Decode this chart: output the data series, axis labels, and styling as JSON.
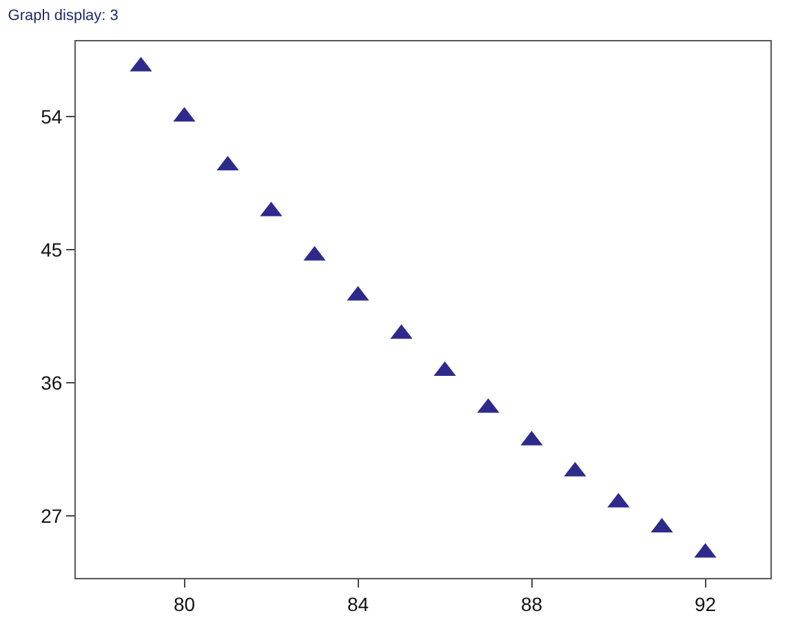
{
  "chart_data": {
    "type": "scatter",
    "title": "Graph display: 3",
    "x": [
      79,
      80,
      81,
      82,
      83,
      84,
      85,
      86,
      87,
      88,
      89,
      90,
      91,
      92
    ],
    "series": [
      {
        "color": "#2e2a8c",
        "values": [
          57.4,
          54.0,
          50.7,
          47.6,
          44.6,
          41.9,
          39.3,
          36.8,
          34.3,
          32.1,
          30.0,
          27.9,
          26.2,
          24.5
        ]
      }
    ],
    "marker": "triangle",
    "xlim": [
      77.5,
      93.5
    ],
    "ylim": [
      22.8,
      59.1
    ],
    "xticks": [
      80,
      84,
      88,
      92
    ],
    "yticks": [
      27,
      36,
      45,
      54
    ],
    "grid": false
  }
}
